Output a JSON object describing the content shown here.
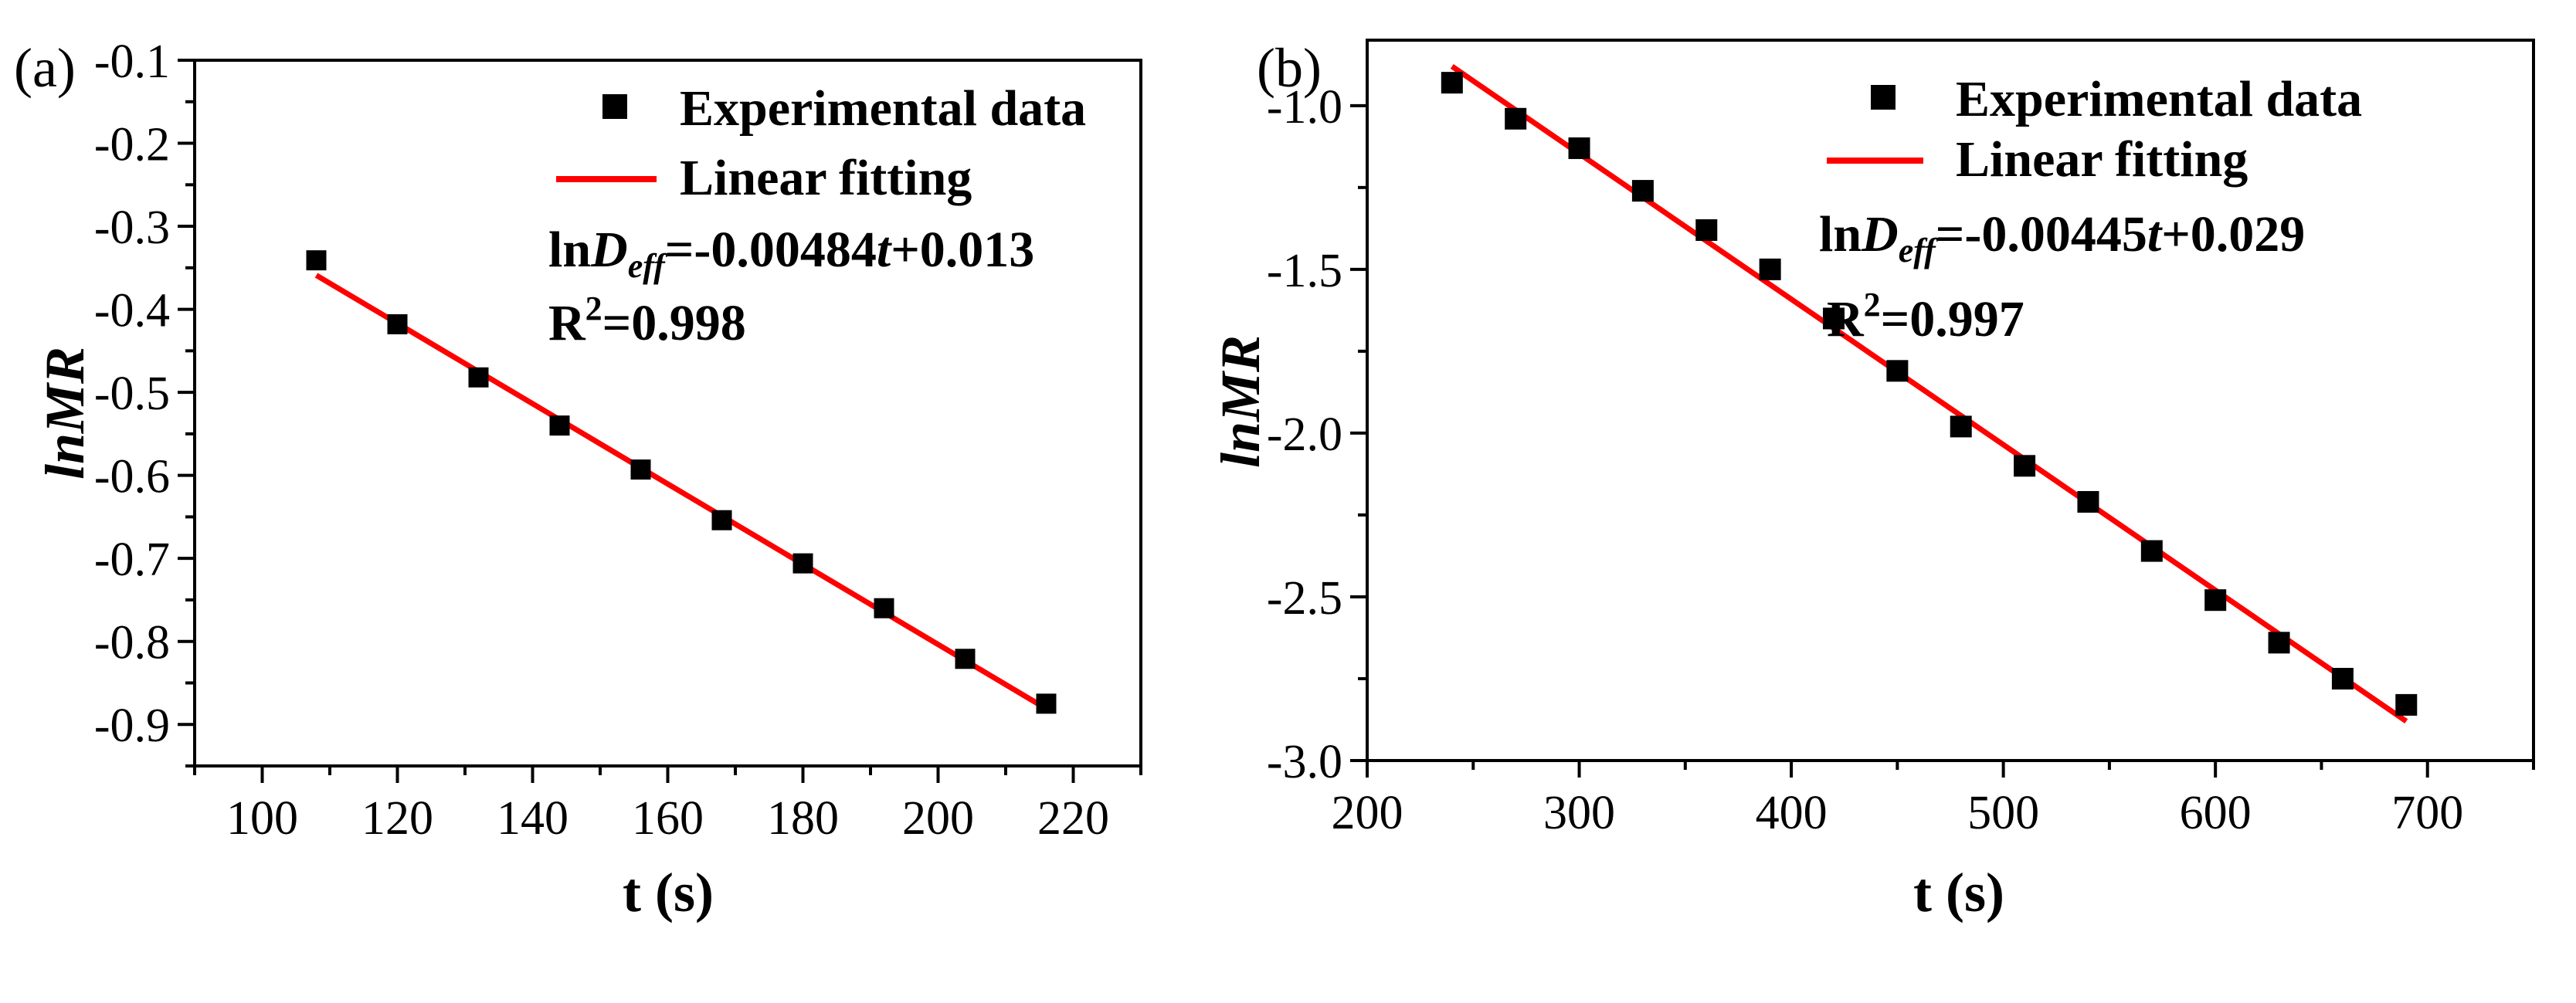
{
  "chart_data": [
    {
      "panel_label": "(a)",
      "type": "scatter",
      "xlabel": "t (s)",
      "ylabel": "lnMR",
      "xlim": [
        90,
        230
      ],
      "ylim": [
        -0.95,
        -0.1
      ],
      "xticks": [
        100,
        120,
        140,
        160,
        180,
        200,
        220
      ],
      "yticks": [
        -0.1,
        -0.2,
        -0.3,
        -0.4,
        -0.5,
        -0.6,
        -0.7,
        -0.8,
        -0.9
      ],
      "series": [
        {
          "name": "Experimental data",
          "kind": "points",
          "color": "#000000",
          "x": [
            108,
            120,
            132,
            144,
            156,
            168,
            180,
            192,
            204,
            216
          ],
          "y": [
            -0.341,
            -0.418,
            -0.482,
            -0.54,
            -0.593,
            -0.654,
            -0.706,
            -0.76,
            -0.821,
            -0.875
          ]
        },
        {
          "name": "Linear fitting",
          "kind": "line",
          "color": "#ff0000",
          "x": [
            108,
            216
          ],
          "y": [
            -0.359,
            -0.881
          ]
        }
      ],
      "annotations": {
        "equation_prefix": "ln",
        "equation_D": "D",
        "equation_sub": "eff",
        "equation_mid": "=-0.00484",
        "equation_t": "t",
        "equation_suffix": "+0.013",
        "r2_prefix": "R",
        "r2_sup": "2",
        "r2_value": "=0.998"
      }
    },
    {
      "panel_label": "(b)",
      "type": "scatter",
      "xlabel": "t (s)",
      "ylabel": "lnMR",
      "xlim": [
        200,
        750
      ],
      "ylim": [
        -3.0,
        -0.8
      ],
      "xticks": [
        200,
        300,
        400,
        500,
        600,
        700
      ],
      "yticks": [
        -1.0,
        -1.5,
        -2.0,
        -2.5,
        -3.0
      ],
      "ytick_labels": [
        "-1.0",
        "-1.5",
        "-2.0",
        "-2.5",
        "-3.0"
      ],
      "series": [
        {
          "name": "Experimental data",
          "kind": "points",
          "color": "#000000",
          "x": [
            240,
            270,
            300,
            330,
            360,
            390,
            420,
            450,
            480,
            510,
            540,
            570,
            600,
            630,
            660,
            690
          ],
          "y": [
            -0.93,
            -1.04,
            -1.13,
            -1.26,
            -1.38,
            -1.5,
            -1.65,
            -1.81,
            -1.98,
            -2.1,
            -2.21,
            -2.36,
            -2.51,
            -2.64,
            -2.75,
            -2.83
          ]
        },
        {
          "name": "Linear fitting",
          "kind": "line",
          "color": "#ff0000",
          "x": [
            240,
            690
          ],
          "y": [
            -0.88,
            -2.88
          ]
        }
      ],
      "annotations": {
        "equation_prefix": "ln",
        "equation_D": "D",
        "equation_sub": "eff",
        "equation_mid": "=-0.00445",
        "equation_t": "t",
        "equation_suffix": "+0.029",
        "r2_prefix": "R",
        "r2_sup": "2",
        "r2_value": "=0.997"
      }
    }
  ]
}
